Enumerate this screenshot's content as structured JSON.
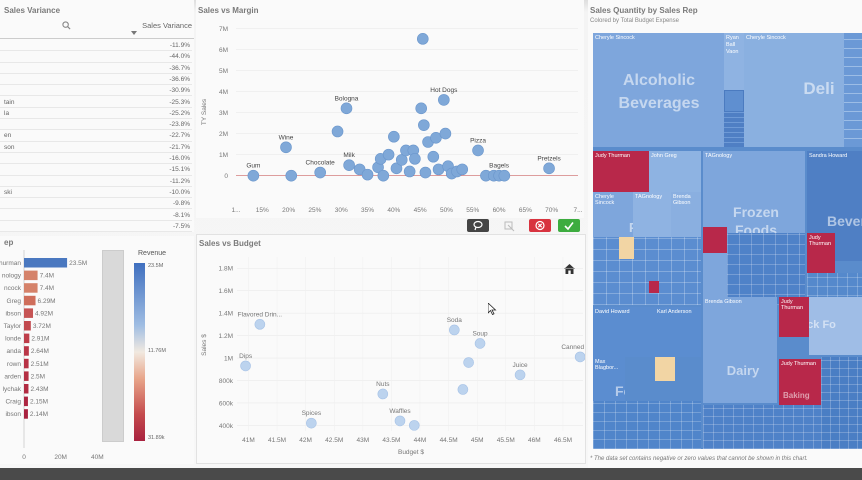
{
  "sales_variance": {
    "title": "Sales Variance",
    "col_header": "Sales Variance",
    "rows": [
      {
        "dim": "",
        "val": "-11.9%"
      },
      {
        "dim": "",
        "val": "-44.0%"
      },
      {
        "dim": "",
        "val": "-36.7%"
      },
      {
        "dim": "",
        "val": "-36.6%"
      },
      {
        "dim": "",
        "val": "-30.9%"
      },
      {
        "dim": "tain",
        "val": "-25.3%"
      },
      {
        "dim": "la",
        "val": "-25.2%"
      },
      {
        "dim": "",
        "val": "-23.8%"
      },
      {
        "dim": "en",
        "val": "-22.7%"
      },
      {
        "dim": "son",
        "val": "-21.7%"
      },
      {
        "dim": "",
        "val": "-16.0%"
      },
      {
        "dim": "",
        "val": "-15.1%"
      },
      {
        "dim": "",
        "val": "-11.2%"
      },
      {
        "dim": "ski",
        "val": "-10.0%"
      },
      {
        "dim": "",
        "val": "-9.8%"
      },
      {
        "dim": "",
        "val": "-8.1%"
      },
      {
        "dim": "",
        "val": "-7.5%"
      }
    ]
  },
  "sales_rep": {
    "title": "ep",
    "legend_title": "Revenue",
    "legend_max": "23.5M",
    "legend_mid": "11.76M",
    "legend_min": "31.89k",
    "x_ticks": [
      "0",
      "20M",
      "40M"
    ],
    "bars": [
      {
        "label": "hurman",
        "value": 23.5,
        "value_label": "23.5M",
        "color": "#4a78c0"
      },
      {
        "label": "nology",
        "value": 7.4,
        "value_label": "7.4M",
        "color": "#d5826a"
      },
      {
        "label": "ncock",
        "value": 7.4,
        "value_label": "7.4M",
        "color": "#d5826a"
      },
      {
        "label": "Greg",
        "value": 6.29,
        "value_label": "6.29M",
        "color": "#cf6e5b"
      },
      {
        "label": "ibson",
        "value": 4.92,
        "value_label": "4.92M",
        "color": "#c65454"
      },
      {
        "label": "Taylor",
        "value": 3.72,
        "value_label": "3.72M",
        "color": "#c24a4f"
      },
      {
        "label": "londe",
        "value": 2.91,
        "value_label": "2.91M",
        "color": "#be3e4a"
      },
      {
        "label": "anda",
        "value": 2.64,
        "value_label": "2.64M",
        "color": "#ba3647"
      },
      {
        "label": "rown",
        "value": 2.51,
        "value_label": "2.51M",
        "color": "#b83245"
      },
      {
        "label": "arden",
        "value": 2.5,
        "value_label": "2.5M",
        "color": "#b53044"
      },
      {
        "label": "lychak",
        "value": 2.43,
        "value_label": "2.43M",
        "color": "#b22c42"
      },
      {
        "label": "Craig",
        "value": 2.15,
        "value_label": "2.15M",
        "color": "#ad2641"
      },
      {
        "label": "ibson",
        "value": 2.14,
        "value_label": "2.14M",
        "color": "#a9223f"
      }
    ]
  },
  "sales_vs_margin": {
    "title": "Sales vs Margin",
    "ylabel": "TY Sales",
    "y_ticks": [
      "0",
      "1M",
      "2M",
      "3M",
      "4M",
      "5M",
      "6M",
      "7M"
    ],
    "x_ticks": [
      "1...",
      "15%",
      "20%",
      "25%",
      "30%",
      "35%",
      "40%",
      "45%",
      "50%",
      "55%",
      "60%",
      "65%",
      "70%",
      "7..."
    ]
  },
  "sales_vs_budget": {
    "title": "Sales vs Budget",
    "ylabel": "Sales $",
    "xlabel": "Budget $",
    "y_ticks": [
      "400k",
      "600k",
      "800k",
      "1M",
      "1.2M",
      "1.4M",
      "1.6M",
      "1.8M"
    ],
    "x_ticks": [
      "41M",
      "41.5M",
      "42M",
      "42.5M",
      "43M",
      "43.5M",
      "44M",
      "44.5M",
      "45M",
      "45.5M",
      "46M",
      "46.5M"
    ]
  },
  "chart_data": [
    {
      "type": "scatter",
      "title": "Sales vs Margin",
      "xlabel": "",
      "ylabel": "TY Sales",
      "xlim": [
        10,
        75
      ],
      "ylim": [
        -0.3,
        7.3
      ],
      "points": [
        {
          "x": 13.3,
          "y": 0,
          "label": "Gum"
        },
        {
          "x": 20.5,
          "y": 0,
          "label": ""
        },
        {
          "x": 19.5,
          "y": 1.35,
          "label": "Wine"
        },
        {
          "x": 26.0,
          "y": 0.15,
          "label": "Chocolate"
        },
        {
          "x": 29.3,
          "y": 2.1,
          "label": ""
        },
        {
          "x": 31.0,
          "y": 3.2,
          "label": "Bologna"
        },
        {
          "x": 31.5,
          "y": 0.5,
          "label": "Milk"
        },
        {
          "x": 33.5,
          "y": 0.3,
          "label": ""
        },
        {
          "x": 35.0,
          "y": 0.05,
          "label": ""
        },
        {
          "x": 37.0,
          "y": 0.4,
          "label": ""
        },
        {
          "x": 37.5,
          "y": 0.8,
          "label": ""
        },
        {
          "x": 38.0,
          "y": 0.0,
          "label": ""
        },
        {
          "x": 39.0,
          "y": 1.0,
          "label": ""
        },
        {
          "x": 40.0,
          "y": 1.85,
          "label": ""
        },
        {
          "x": 40.5,
          "y": 0.35,
          "label": ""
        },
        {
          "x": 41.5,
          "y": 0.75,
          "label": ""
        },
        {
          "x": 42.3,
          "y": 1.2,
          "label": ""
        },
        {
          "x": 43.0,
          "y": 0.2,
          "label": ""
        },
        {
          "x": 43.7,
          "y": 1.2,
          "label": ""
        },
        {
          "x": 44.0,
          "y": 0.8,
          "label": ""
        },
        {
          "x": 45.2,
          "y": 3.2,
          "label": ""
        },
        {
          "x": 45.5,
          "y": 6.5,
          "label": ""
        },
        {
          "x": 45.7,
          "y": 2.4,
          "label": ""
        },
        {
          "x": 46.0,
          "y": 0.15,
          "label": ""
        },
        {
          "x": 46.5,
          "y": 1.6,
          "label": ""
        },
        {
          "x": 47.5,
          "y": 0.9,
          "label": ""
        },
        {
          "x": 48.0,
          "y": 1.8,
          "label": ""
        },
        {
          "x": 48.5,
          "y": 0.3,
          "label": ""
        },
        {
          "x": 49.5,
          "y": 3.6,
          "label": "Hot Dogs"
        },
        {
          "x": 49.8,
          "y": 2.0,
          "label": ""
        },
        {
          "x": 50.3,
          "y": 0.45,
          "label": ""
        },
        {
          "x": 51.0,
          "y": 0.1,
          "label": ""
        },
        {
          "x": 52.0,
          "y": 0.2,
          "label": ""
        },
        {
          "x": 53.0,
          "y": 0.3,
          "label": ""
        },
        {
          "x": 56.0,
          "y": 1.2,
          "label": "Pizza"
        },
        {
          "x": 57.5,
          "y": 0.0,
          "label": ""
        },
        {
          "x": 59.0,
          "y": 0.0,
          "label": ""
        },
        {
          "x": 60.0,
          "y": 0.0,
          "label": "Bagels"
        },
        {
          "x": 61.0,
          "y": 0.0,
          "label": ""
        },
        {
          "x": 69.5,
          "y": 0.35,
          "label": "Pretzels"
        }
      ]
    },
    {
      "type": "scatter",
      "title": "Sales vs Budget",
      "xlabel": "Budget $",
      "ylabel": "Sales $",
      "xlim": [
        40.8,
        46.85
      ],
      "ylim": [
        350,
        1900
      ],
      "points": [
        {
          "x": 41.2,
          "y": 1300,
          "label": "Flavored Drin..."
        },
        {
          "x": 40.95,
          "y": 930,
          "label": "Dips"
        },
        {
          "x": 42.1,
          "y": 420,
          "label": "Spices"
        },
        {
          "x": 43.35,
          "y": 680,
          "label": "Nuts"
        },
        {
          "x": 43.65,
          "y": 440,
          "label": "Waffles"
        },
        {
          "x": 43.9,
          "y": 400,
          "label": ""
        },
        {
          "x": 44.6,
          "y": 1250,
          "label": "Soda"
        },
        {
          "x": 44.85,
          "y": 960,
          "label": ""
        },
        {
          "x": 45.05,
          "y": 1130,
          "label": "Soup"
        },
        {
          "x": 44.75,
          "y": 720,
          "label": ""
        },
        {
          "x": 45.75,
          "y": 850,
          "label": "Juice"
        },
        {
          "x": 46.8,
          "y": 1010,
          "label": "Canned Ve..."
        }
      ]
    },
    {
      "type": "bar",
      "title": "",
      "categories": [
        "hurman",
        "nology",
        "ncock",
        "Greg",
        "ibson",
        "Taylor",
        "londe",
        "anda",
        "rown",
        "arden",
        "lychak",
        "Craig",
        "ibson"
      ],
      "values": [
        23.5,
        7.4,
        7.4,
        6.29,
        4.92,
        3.72,
        2.91,
        2.64,
        2.51,
        2.5,
        2.43,
        2.15,
        2.14
      ],
      "xlim": [
        0,
        48
      ]
    }
  ],
  "treemap": {
    "title": "Sales Quantity by Sales Rep",
    "subtitle": "Colored by Total Budget Expense",
    "footnote": "* The data set contains negative or zero values that cannot be shown in this chart.",
    "cells": {
      "cheryle1": "Cheryle Sincock",
      "ryan": "Ryan",
      "ryan2": "Ball",
      "ryan3": "Vaon",
      "cheryle2": "Cheryle Sincock",
      "judy1": "Judy Thurman",
      "john": "John Greg",
      "tag1": "TAGnology",
      "sandra": "Sandra Howard",
      "cheryle3": "Cheryle Sincock",
      "tag2": "TAGnology",
      "brenda1": "Brenda Gibson",
      "judy2": "Judy Thurman",
      "david": "David Howard",
      "karl": "Karl Anderson",
      "brenda2": "Brenda Gibson",
      "judy3": "Judy Thurman",
      "max": "Max Blagbor...",
      "judy4": "Judy Thurman"
    },
    "categories": {
      "alcoholic": "Alcoholic Beverages",
      "deli": "Deli",
      "frozen": "Frozen Foods",
      "produce": "Produce",
      "bever": "Bever",
      "snack": "Snack Fo",
      "dairy": "Dairy",
      "food": "Food",
      "baking": "Baking"
    }
  },
  "buttons": {
    "lasso": "lasso",
    "clear": "clear",
    "cancel": "cancel",
    "confirm": "confirm"
  },
  "colors": {
    "blue": "#5b8fd1",
    "light_blue": "#a9c6ea",
    "red": "#b8284a",
    "cream": "#f2d5a4"
  }
}
